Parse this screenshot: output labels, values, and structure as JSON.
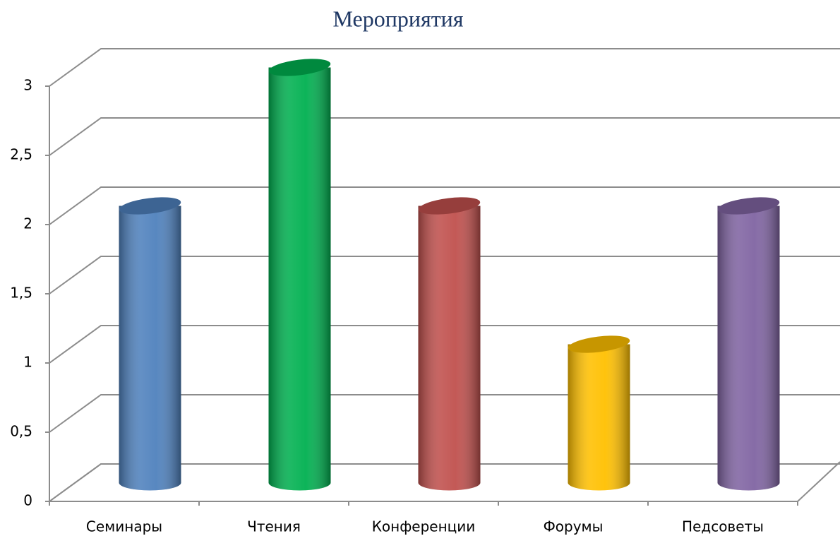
{
  "chart_data": {
    "type": "bar",
    "title": "Мероприятия",
    "categories": [
      "Семинары",
      "Чтения",
      "Конференции",
      "Форумы",
      "Педсоветы"
    ],
    "values": [
      2,
      3,
      2,
      1,
      2
    ],
    "colors": [
      "#4f81bd",
      "#00b050",
      "#c0504d",
      "#ffc000",
      "#8064a2"
    ],
    "ylim": [
      0,
      3
    ],
    "yticks": [
      0,
      {
        "value": 0.5,
        "label": "0,5"
      },
      1,
      {
        "value": 1.5,
        "label": "1,5"
      },
      2,
      {
        "value": 2.5,
        "label": "2,5"
      },
      3
    ],
    "grid": true
  }
}
